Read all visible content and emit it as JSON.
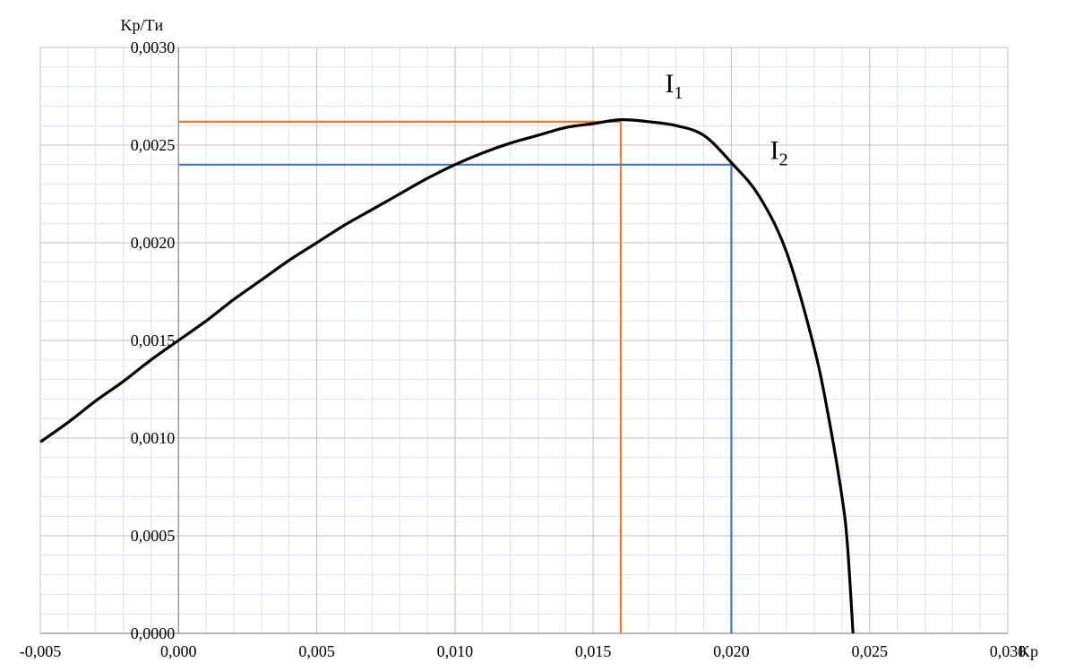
{
  "chart_data": {
    "type": "line",
    "xlabel": "Kp",
    "ylabel": "Kp/Tи",
    "xlim": [
      -0.005,
      0.03
    ],
    "ylim": [
      0,
      0.003
    ],
    "grid": "major and minor",
    "x_tick_values": [
      -0.005,
      0.0,
      0.005,
      0.01,
      0.015,
      0.02,
      0.025,
      0.03
    ],
    "x_tick_labels": [
      "-0,005",
      "0,000",
      "0,005",
      "0,010",
      "0,015",
      "0,020",
      "0,025",
      "0,030"
    ],
    "y_tick_values": [
      0.0,
      0.0005,
      0.001,
      0.0015,
      0.002,
      0.0025,
      0.003
    ],
    "y_tick_labels": [
      "0,0000",
      "0,0005",
      "0,0010",
      "0,0015",
      "0,0020",
      "0,0025",
      "0,0030"
    ],
    "series": [
      {
        "color": "#000000",
        "x": [
          -0.005,
          -0.004,
          -0.003,
          -0.002,
          -0.001,
          0.0,
          0.001,
          0.002,
          0.003,
          0.004,
          0.005,
          0.006,
          0.007,
          0.008,
          0.009,
          0.01,
          0.011,
          0.012,
          0.013,
          0.014,
          0.015,
          0.016,
          0.017,
          0.018,
          0.019,
          0.02,
          0.021,
          0.022,
          0.023,
          0.0235,
          0.024,
          0.0242,
          0.0244
        ],
        "y": [
          0.00098,
          0.00108,
          0.00119,
          0.00129,
          0.0014,
          0.0015,
          0.0016,
          0.00171,
          0.00181,
          0.00191,
          0.002,
          0.00209,
          0.00217,
          0.00225,
          0.00233,
          0.0024,
          0.00246,
          0.00251,
          0.00255,
          0.00259,
          0.00261,
          0.00263,
          0.00262,
          0.0026,
          0.00255,
          0.00241,
          0.00224,
          0.00195,
          0.00146,
          0.00112,
          0.0007,
          0.00045,
          0.0
        ]
      }
    ],
    "reference_lines": [
      {
        "name": "I1",
        "color": "#ED7D31",
        "x": 0.016,
        "y": 0.00262
      },
      {
        "name": "I2",
        "color": "#4472C4",
        "x": 0.02,
        "y": 0.0024
      }
    ],
    "annotations": [
      {
        "text": "I",
        "subscript": "1",
        "x": 0.0176,
        "y": 0.00277
      },
      {
        "text": "I",
        "subscript": "2",
        "x": 0.0214,
        "y": 0.00243
      }
    ]
  }
}
